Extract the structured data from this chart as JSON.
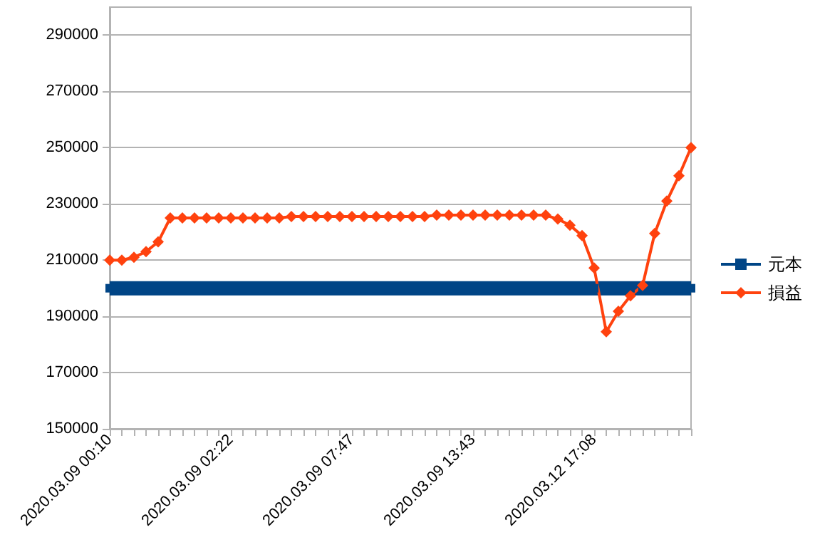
{
  "chart_data": {
    "type": "line",
    "categories": [
      "2020.03.09 00:10",
      null,
      null,
      null,
      null,
      null,
      null,
      null,
      null,
      null,
      "2020.03.09 02:22",
      null,
      null,
      null,
      null,
      null,
      null,
      null,
      null,
      null,
      "2020.03.09 07:47",
      null,
      null,
      null,
      null,
      null,
      null,
      null,
      null,
      null,
      "2020.03.09 13:43",
      null,
      null,
      null,
      null,
      null,
      null,
      null,
      null,
      null,
      "2020.03.12 17:08",
      null,
      null,
      null,
      null,
      null,
      null,
      null,
      null
    ],
    "series": [
      {
        "name": "元本",
        "color": "#004586",
        "marker": "square",
        "values": [
          200000,
          200000,
          200000,
          200000,
          200000,
          200000,
          200000,
          200000,
          200000,
          200000,
          200000,
          200000,
          200000,
          200000,
          200000,
          200000,
          200000,
          200000,
          200000,
          200000,
          200000,
          200000,
          200000,
          200000,
          200000,
          200000,
          200000,
          200000,
          200000,
          200000,
          200000,
          200000,
          200000,
          200000,
          200000,
          200000,
          200000,
          200000,
          200000,
          200000,
          200000,
          200000,
          200000,
          200000,
          200000,
          200000,
          200000,
          200000,
          200000
        ]
      },
      {
        "name": "損益",
        "color": "#ff420e",
        "marker": "diamond",
        "values": [
          210000,
          210000,
          211000,
          213000,
          216500,
          225000,
          225000,
          225000,
          225000,
          225000,
          225000,
          225000,
          225000,
          225000,
          225000,
          225500,
          225500,
          225500,
          225500,
          225500,
          225500,
          225500,
          225500,
          225500,
          225500,
          225500,
          225500,
          226000,
          226000,
          226000,
          226000,
          226000,
          226000,
          226000,
          226000,
          226000,
          226000,
          224600,
          222400,
          218700,
          207200,
          184500,
          191800,
          197300,
          201000,
          219500,
          231000,
          240000,
          250000
        ]
      }
    ],
    "ylim": [
      150000,
      300000
    ],
    "yticks": [
      150000,
      170000,
      190000,
      210000,
      230000,
      250000,
      270000,
      290000
    ],
    "grid": "y",
    "legend": "right"
  }
}
